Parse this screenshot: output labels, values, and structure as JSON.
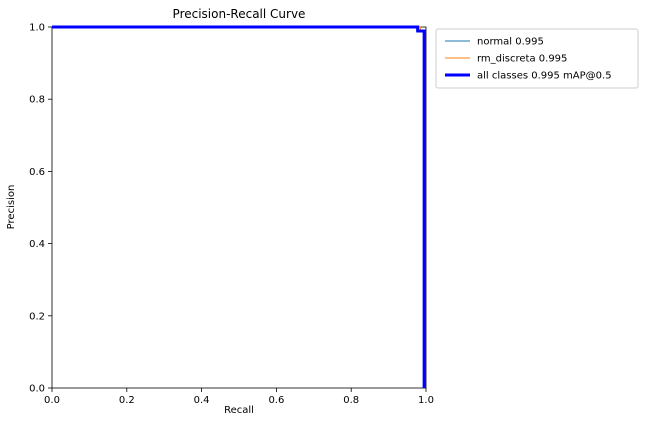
{
  "figure": {
    "background": "#ffffff",
    "axis_color": "#000000",
    "legend_border_color": "#cccccc"
  },
  "chart_data": {
    "type": "line",
    "title": "Precision-Recall Curve",
    "xlabel": "Recall",
    "ylabel": "Precision",
    "xlim": [
      0.0,
      1.0
    ],
    "ylim": [
      0.0,
      1.0
    ],
    "xtick_values": [
      0.0,
      0.2,
      0.4,
      0.6,
      0.8,
      1.0
    ],
    "xtick_labels": [
      "0.0",
      "0.2",
      "0.4",
      "0.6",
      "0.8",
      "1.0"
    ],
    "ytick_values": [
      0.0,
      0.2,
      0.4,
      0.6,
      0.8,
      1.0
    ],
    "ytick_labels": [
      "0.0",
      "0.2",
      "0.4",
      "0.6",
      "0.8",
      "1.0"
    ],
    "grid": false,
    "legend_position": "outside upper right",
    "series": [
      {
        "name": "normal 0.995",
        "color": "#1f77b4",
        "line_width": 1,
        "points": [
          [
            0.0,
            1.0
          ],
          [
            0.975,
            1.0
          ],
          [
            0.975,
            0.988
          ],
          [
            0.994,
            0.988
          ],
          [
            0.994,
            0.0
          ]
        ]
      },
      {
        "name": "rm_discreta 0.995",
        "color": "#ff7f0e",
        "line_width": 1,
        "points": [
          [
            0.0,
            1.0
          ],
          [
            0.985,
            1.0
          ],
          [
            0.985,
            0.99
          ],
          [
            0.996,
            0.99
          ],
          [
            0.996,
            0.0
          ]
        ]
      },
      {
        "name": "all classes 0.995 mAP@0.5",
        "color": "#0000ff",
        "line_width": 3,
        "points": [
          [
            0.0,
            1.0
          ],
          [
            0.978,
            1.0
          ],
          [
            0.978,
            0.989
          ],
          [
            0.995,
            0.989
          ],
          [
            0.995,
            0.0
          ]
        ]
      }
    ]
  }
}
